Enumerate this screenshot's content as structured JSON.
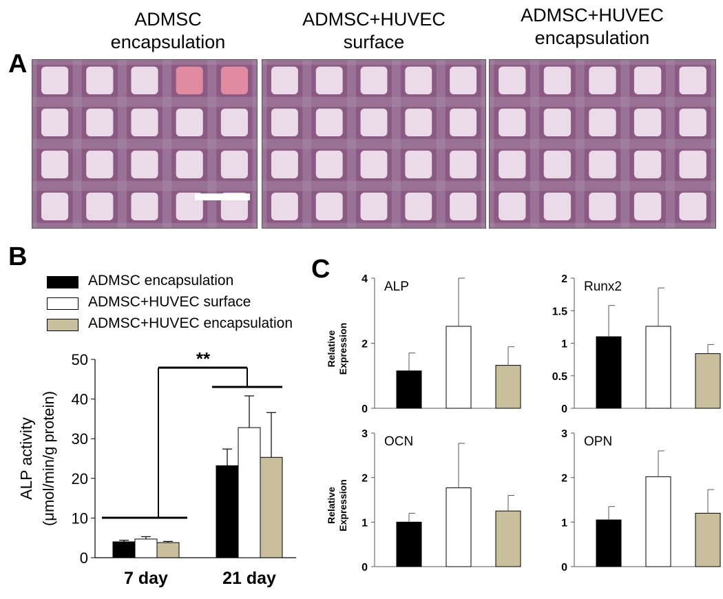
{
  "panels": {
    "a": "A",
    "b": "B",
    "c": "C"
  },
  "images": [
    {
      "title_line1": "ADMSC",
      "title_line2": "encapsulation"
    },
    {
      "title_line1": "ADMSC+HUVEC",
      "title_line2": "surface"
    },
    {
      "title_line1": "ADMSC+HUVEC",
      "title_line2": "encapsulation"
    }
  ],
  "colors": {
    "admsc": "#000000",
    "surface": "#ffffff",
    "encap": "#c9bf9c",
    "photo_bg": "#8a5a83",
    "photo_pore": "#f3e6f1",
    "photo_strut": "#a887a8"
  },
  "legend": [
    {
      "label": "ADMSC encapsulation",
      "color": "#000000"
    },
    {
      "label": "ADMSC+HUVEC surface",
      "color": "#ffffff"
    },
    {
      "label": "ADMSC+HUVEC encapsulation",
      "color": "#c9bf9c"
    }
  ],
  "significance": "**",
  "chart_data": [
    {
      "type": "bar",
      "id": "alp-activity",
      "ylabel_line1": "ALP activity",
      "ylabel_line2": "(μmol/min/g protein)",
      "categories": [
        "7 day",
        "21 day"
      ],
      "ylim": [
        0,
        50
      ],
      "yticks": [
        0,
        10,
        20,
        30,
        40,
        50
      ],
      "series": [
        {
          "name": "ADMSC encapsulation",
          "values": [
            4.0,
            23.2
          ],
          "errors": [
            0.4,
            4.2
          ]
        },
        {
          "name": "ADMSC+HUVEC surface",
          "values": [
            4.7,
            32.8
          ],
          "errors": [
            0.6,
            8.0
          ]
        },
        {
          "name": "ADMSC+HUVEC encapsulation",
          "values": [
            3.8,
            25.3
          ],
          "errors": [
            0.3,
            11.3
          ]
        }
      ]
    },
    {
      "type": "bar",
      "id": "alp",
      "title": "ALP",
      "ylabel_line1": "Relative",
      "ylabel_line2": "Expression",
      "ylim": [
        0,
        4
      ],
      "yticks": [
        "0",
        "2",
        "4"
      ],
      "ytick_values": [
        0,
        2,
        4
      ],
      "series": [
        {
          "name": "ADMSC encapsulation",
          "values": [
            1.15
          ],
          "errors": [
            0.55
          ]
        },
        {
          "name": "ADMSC+HUVEC surface",
          "values": [
            2.52
          ],
          "errors": [
            1.48
          ]
        },
        {
          "name": "ADMSC+HUVEC encapsulation",
          "values": [
            1.32
          ],
          "errors": [
            0.57
          ]
        }
      ]
    },
    {
      "type": "bar",
      "id": "runx2",
      "title": "Runx2",
      "ylim": [
        0,
        2
      ],
      "yticks": [
        "0",
        "0.5",
        "1",
        "1.5",
        "2"
      ],
      "ytick_values": [
        0,
        0.5,
        1,
        1.5,
        2
      ],
      "series": [
        {
          "name": "ADMSC encapsulation",
          "values": [
            1.1
          ],
          "errors": [
            0.48
          ]
        },
        {
          "name": "ADMSC+HUVEC surface",
          "values": [
            1.26
          ],
          "errors": [
            0.59
          ]
        },
        {
          "name": "ADMSC+HUVEC encapsulation",
          "values": [
            0.84
          ],
          "errors": [
            0.14
          ]
        }
      ]
    },
    {
      "type": "bar",
      "id": "ocn",
      "title": "OCN",
      "ylabel_line1": "Relative",
      "ylabel_line2": "Expression",
      "ylim": [
        0,
        3
      ],
      "yticks": [
        "0",
        "1",
        "2",
        "3"
      ],
      "ytick_values": [
        0,
        1,
        2,
        3
      ],
      "series": [
        {
          "name": "ADMSC encapsulation",
          "values": [
            1.0
          ],
          "errors": [
            0.2
          ]
        },
        {
          "name": "ADMSC+HUVEC surface",
          "values": [
            1.77
          ],
          "errors": [
            1.0
          ]
        },
        {
          "name": "ADMSC+HUVEC encapsulation",
          "values": [
            1.25
          ],
          "errors": [
            0.35
          ]
        }
      ]
    },
    {
      "type": "bar",
      "id": "opn",
      "title": "OPN",
      "ylim": [
        0,
        3
      ],
      "yticks": [
        "0",
        "1",
        "2",
        "3"
      ],
      "ytick_values": [
        0,
        1,
        2,
        3
      ],
      "series": [
        {
          "name": "ADMSC encapsulation",
          "values": [
            1.05
          ],
          "errors": [
            0.3
          ]
        },
        {
          "name": "ADMSC+HUVEC surface",
          "values": [
            2.02
          ],
          "errors": [
            0.58
          ]
        },
        {
          "name": "ADMSC+HUVEC encapsulation",
          "values": [
            1.2
          ],
          "errors": [
            0.53
          ]
        }
      ]
    }
  ]
}
